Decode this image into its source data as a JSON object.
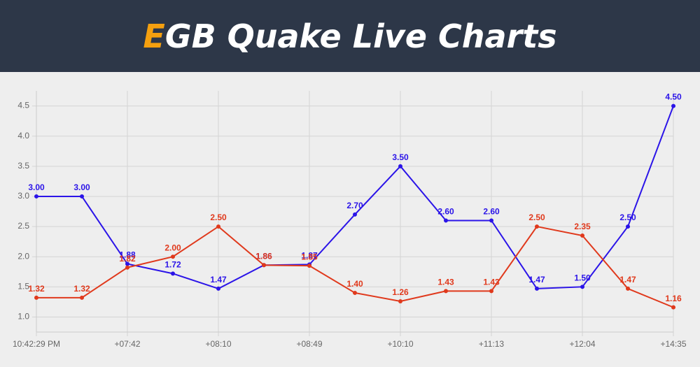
{
  "header": {
    "title_accent": "E",
    "title_rest": "GB Quake Live Charts"
  },
  "chart_data": {
    "type": "line",
    "categories": [
      "10:42:29 PM",
      null,
      "+07:42",
      null,
      "+08:10",
      null,
      "+08:49",
      null,
      "+10:10",
      null,
      "+11:13",
      null,
      "+12:04",
      null,
      "+14:35"
    ],
    "series": [
      {
        "color": "#2b14e8",
        "values": [
          3.0,
          3.0,
          1.88,
          1.72,
          1.47,
          1.86,
          1.87,
          2.7,
          3.5,
          2.6,
          2.6,
          1.47,
          1.5,
          2.5,
          4.5
        ],
        "value_labels": [
          "3.00",
          "3.00",
          "1.88",
          "1.72",
          "1.47",
          "1.86",
          "1.87",
          "2.70",
          "3.50",
          "2.60",
          "2.60",
          "1.47",
          "1.50",
          "2.50",
          "4.50"
        ]
      },
      {
        "color": "#e0391c",
        "values": [
          1.32,
          1.32,
          1.82,
          2.0,
          2.5,
          1.86,
          1.85,
          1.4,
          1.26,
          1.43,
          1.43,
          2.5,
          2.35,
          1.47,
          1.16
        ],
        "value_labels": [
          "1.32",
          "1.32",
          "1.82",
          "2.00",
          "2.50",
          "1.86",
          "1.85",
          "1.40",
          "1.26",
          "1.43",
          "1.43",
          "2.50",
          "2.35",
          "1.47",
          "1.16"
        ]
      }
    ],
    "ylim": [
      0.75,
      4.75
    ],
    "yticks": [
      {
        "value": 1,
        "label": "1.0"
      },
      {
        "value": 1.5,
        "label": "1.5"
      },
      {
        "value": 2,
        "label": "2.0"
      },
      {
        "value": 2.5,
        "label": "2.5"
      },
      {
        "value": 3,
        "label": "3.0"
      },
      {
        "value": 3.5,
        "label": "3.5"
      },
      {
        "value": 4,
        "label": "4.0"
      },
      {
        "value": 4.5,
        "label": "4.5"
      }
    ],
    "grid": true
  }
}
